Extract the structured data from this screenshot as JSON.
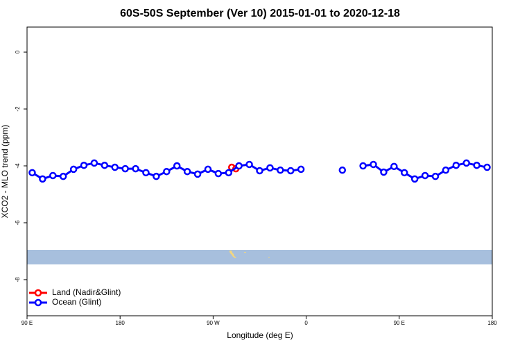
{
  "chart_data": {
    "type": "line",
    "title": "60S-50S September (Ver 10)   2015-01-01 to 2020-12-18",
    "x_label": "Longitude (deg E)",
    "y_label": "XCO2 - MLO trend (ppm)",
    "xlim": [
      90,
      540
    ],
    "ylim": [
      -9.27,
      0.88
    ],
    "xticks": [
      {
        "value": 90,
        "label": "90 E"
      },
      180,
      {
        "value": 270,
        "label": "90 W"
      },
      {
        "value": 360,
        "label": "0"
      },
      {
        "value": 450,
        "label": "90 E"
      },
      {
        "value": 540,
        "label": "180"
      }
    ],
    "yticks": [
      0,
      -2,
      -4,
      -6,
      -8
    ],
    "legend": "bottom-left",
    "series": [
      {
        "name": "Land (Nadir&Glint)",
        "color": "#ff0000",
        "x": [
          288,
          292
        ],
        "values": [
          -4.05,
          -4.1
        ]
      },
      {
        "name": "Ocean (Glint)",
        "color": "#0000ff",
        "x": [
          95,
          105,
          115,
          125,
          135,
          145,
          155,
          165,
          175,
          185,
          195,
          205,
          215,
          225,
          235,
          245,
          255,
          265,
          275,
          285,
          295,
          305,
          315,
          325,
          335,
          345,
          355,
          365,
          375,
          385,
          395,
          405,
          415,
          425,
          435,
          445,
          455,
          465,
          475,
          485,
          495,
          505,
          515,
          525,
          535
        ],
        "values": [
          -4.24,
          -4.46,
          -4.34,
          -4.37,
          -4.12,
          -3.98,
          -3.9,
          -3.98,
          -4.05,
          -4.1,
          -4.1,
          -4.24,
          -4.37,
          -4.2,
          -4.0,
          -4.2,
          -4.29,
          -4.12,
          -4.27,
          -4.24,
          -4.0,
          -3.95,
          -4.17,
          -4.07,
          -4.15,
          -4.17,
          -4.12,
          null,
          null,
          null,
          -4.15,
          null,
          -4.0,
          -3.95,
          -4.22,
          -4.02,
          -4.24,
          -4.46,
          -4.34,
          -4.37,
          -4.15,
          -3.98,
          -3.9,
          -3.98,
          -4.05
        ]
      }
    ]
  }
}
